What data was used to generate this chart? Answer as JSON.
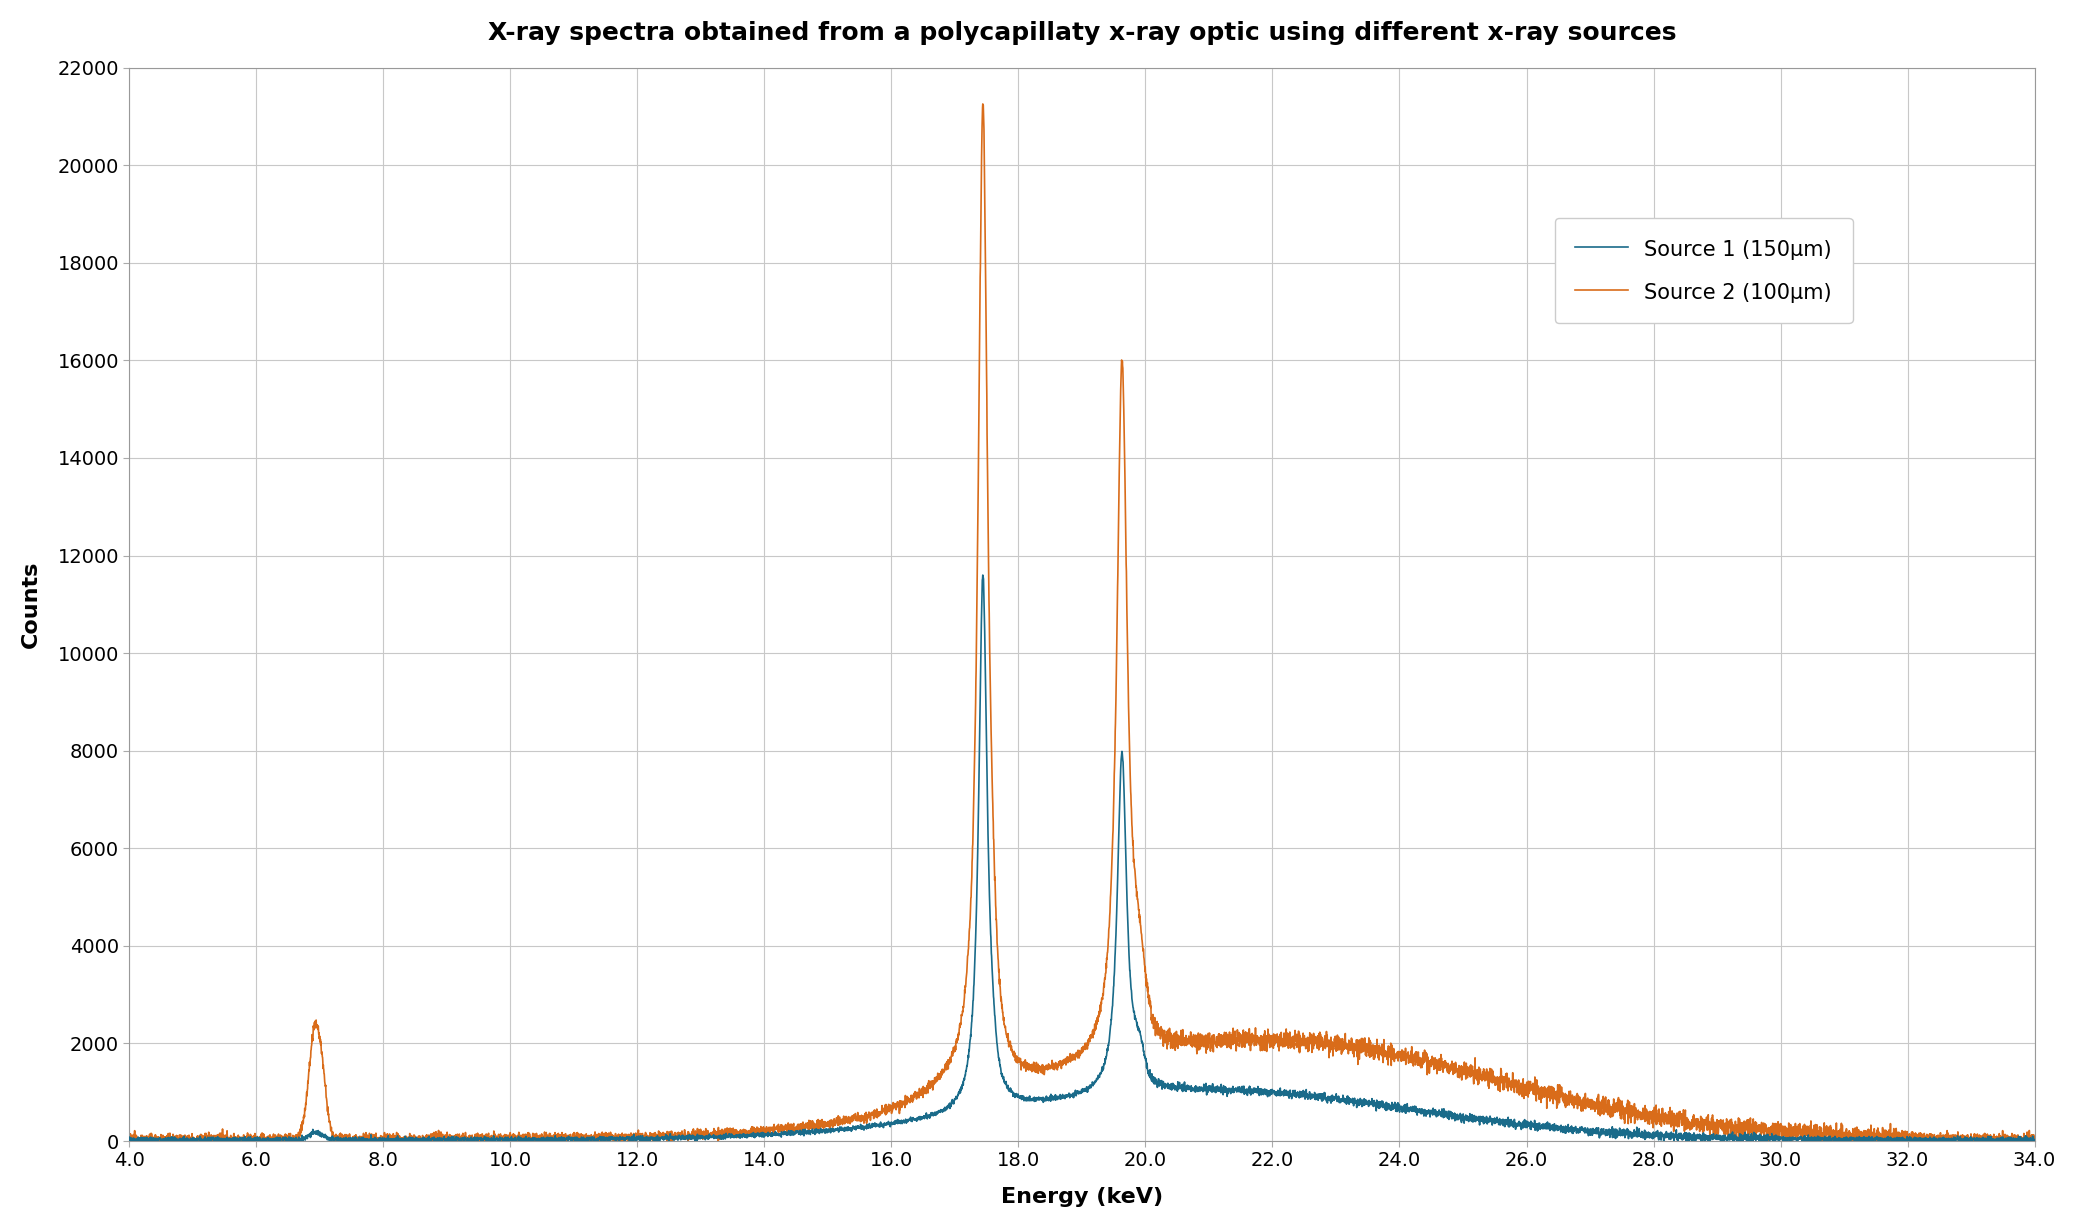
{
  "title": "X-ray spectra obtained from a polycapillaty x-ray optic using different x-ray sources",
  "xlabel": "Energy (keV)",
  "ylabel": "Counts",
  "xlim": [
    4.0,
    34.0
  ],
  "ylim": [
    0,
    22000
  ],
  "yticks": [
    0,
    2000,
    4000,
    6000,
    8000,
    10000,
    12000,
    14000,
    16000,
    18000,
    20000,
    22000
  ],
  "xticks": [
    4.0,
    6.0,
    8.0,
    10.0,
    12.0,
    14.0,
    16.0,
    18.0,
    20.0,
    22.0,
    24.0,
    26.0,
    28.0,
    30.0,
    32.0,
    34.0
  ],
  "source1_color": "#1a6b8a",
  "source2_color": "#d96c1a",
  "source1_label": "Source 1 (150μm)",
  "source2_label": "Source 2 (100μm)",
  "background_color": "#ffffff",
  "grid_color": "#c8c8c8",
  "title_fontsize": 18,
  "label_fontsize": 16,
  "tick_fontsize": 14,
  "legend_fontsize": 15
}
